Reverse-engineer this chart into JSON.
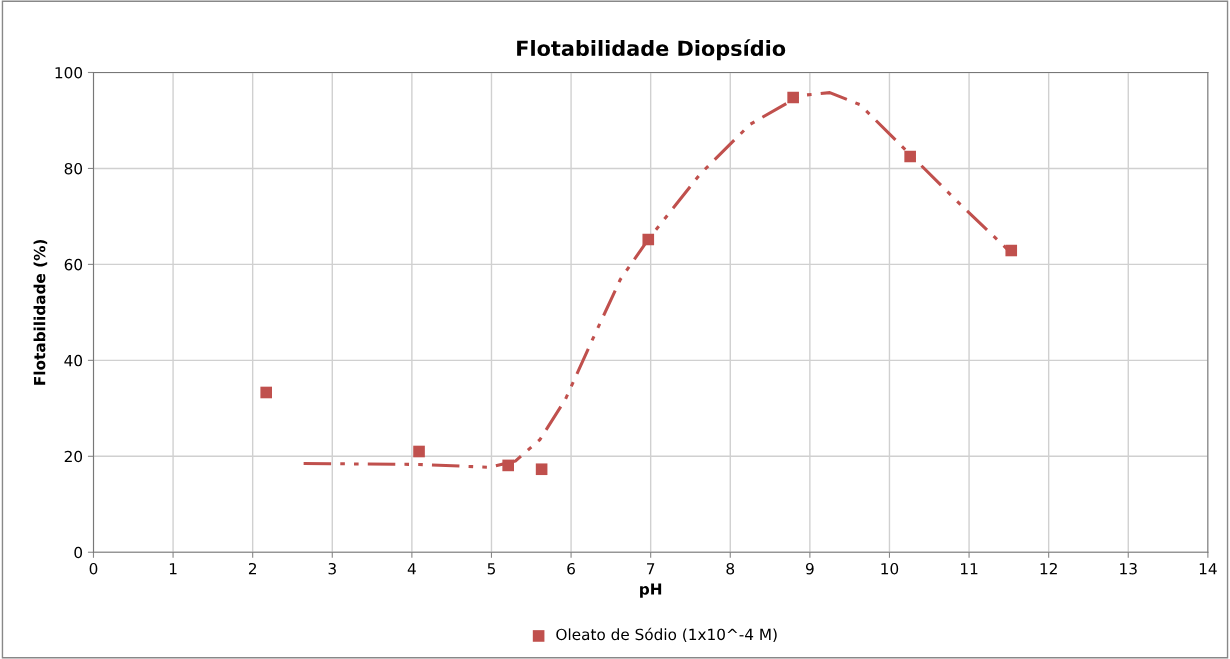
{
  "chart_data": {
    "type": "scatter",
    "title": "Flotabilidade Diopsídio",
    "xlabel": "pH",
    "ylabel": "Flotabilidade (%)",
    "xlim": [
      0,
      14
    ],
    "xticks": [
      0,
      1,
      2,
      3,
      4,
      5,
      6,
      7,
      8,
      9,
      10,
      11,
      12,
      13,
      14
    ],
    "ylim": [
      0,
      100
    ],
    "yticks": [
      0,
      20,
      40,
      60,
      80,
      100
    ],
    "grid": true,
    "legend": "bottom",
    "series": [
      {
        "name": "Oleato de Sódio (1x10^-4 M)",
        "marker": "square",
        "color": "#c0504d",
        "x": [
          2.17,
          4.09,
          5.21,
          5.63,
          6.97,
          8.79,
          10.26,
          11.53
        ],
        "values": [
          33.3,
          21.0,
          18.1,
          17.3,
          65.2,
          94.8,
          82.5,
          62.9
        ]
      },
      {
        "type": "line",
        "line_style": "dashed",
        "color": "#c0504d",
        "x": [
          2.64,
          4.09,
          4.98,
          5.3,
          5.61,
          5.93,
          6.24,
          6.62,
          6.97,
          7.62,
          8.25,
          8.88,
          9.25,
          9.63,
          10.26,
          10.89,
          11.51
        ],
        "values": [
          18.5,
          18.3,
          17.7,
          19.0,
          23.5,
          31.9,
          43.3,
          56.9,
          65.2,
          78.8,
          89.2,
          95.2,
          95.8,
          93.3,
          82.9,
          72.5,
          62.7
        ]
      }
    ]
  }
}
